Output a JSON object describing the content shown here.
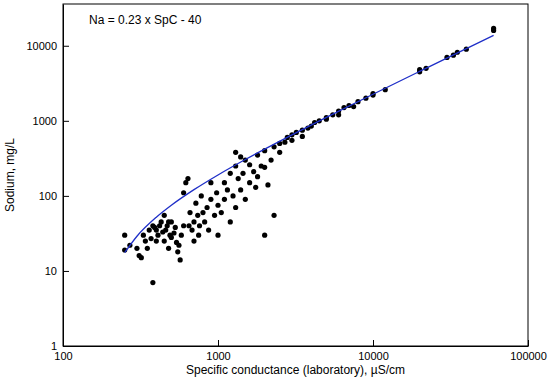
{
  "chart_data": {
    "type": "scatter",
    "log": true,
    "xlabel": "Specific conductance (laboratory), µS/cm",
    "ylabel": "Sodium, mg/L",
    "annotations": [
      "Na = 0.23 x SpC - 40"
    ],
    "xlim": [
      100,
      100000
    ],
    "ylim": [
      1,
      36000
    ],
    "xticks": [
      100,
      1000,
      10000,
      100000
    ],
    "yticks": [
      1,
      10,
      100,
      1000,
      10000
    ],
    "series": [
      {
        "type": "scatter",
        "marker": "circle",
        "color": "#000000",
        "x": [
          250,
          250,
          270,
          300,
          310,
          320,
          330,
          340,
          350,
          360,
          370,
          380,
          380,
          390,
          400,
          400,
          410,
          420,
          430,
          440,
          450,
          450,
          460,
          470,
          480,
          480,
          490,
          500,
          500,
          520,
          530,
          540,
          550,
          560,
          570,
          580,
          600,
          600,
          620,
          640,
          650,
          660,
          680,
          700,
          700,
          720,
          740,
          750,
          760,
          780,
          800,
          820,
          850,
          870,
          900,
          900,
          950,
          980,
          1000,
          1000,
          1050,
          1100,
          1100,
          1150,
          1200,
          1200,
          1250,
          1300,
          1300,
          1350,
          1400,
          1450,
          1500,
          1500,
          1600,
          1600,
          1700,
          1750,
          1800,
          1800,
          1900,
          2000,
          2000,
          2000,
          2100,
          2200,
          2300,
          2300,
          2500,
          2500,
          2700,
          2800,
          3000,
          3000,
          3200,
          3500,
          3500,
          3800,
          4000,
          4200,
          4500,
          5000,
          5000,
          5500,
          6000,
          6000,
          6500,
          7000,
          7500,
          8000,
          9000,
          10000,
          10000,
          12000,
          20000,
          20000,
          22000,
          30000,
          33000,
          35000,
          40000,
          60000,
          60000,
          1300,
          1400
        ],
        "values": [
          30,
          19,
          22,
          20,
          16,
          15,
          30,
          25,
          20,
          35,
          27,
          7,
          40,
          38,
          25,
          35,
          30,
          40,
          45,
          33,
          25,
          55,
          35,
          40,
          20,
          45,
          30,
          45,
          28,
          32,
          38,
          24,
          18,
          22,
          14,
          30,
          40,
          110,
          150,
          170,
          40,
          60,
          35,
          45,
          25,
          80,
          55,
          30,
          40,
          100,
          60,
          45,
          70,
          35,
          90,
          150,
          55,
          110,
          30,
          75,
          60,
          90,
          150,
          120,
          200,
          45,
          100,
          250,
          70,
          170,
          120,
          200,
          300,
          90,
          150,
          260,
          210,
          130,
          350,
          180,
          250,
          30,
          400,
          240,
          140,
          300,
          450,
          55,
          500,
          380,
          520,
          600,
          650,
          550,
          700,
          750,
          620,
          800,
          850,
          950,
          1000,
          1100,
          1050,
          1200,
          1350,
          1200,
          1500,
          1600,
          1550,
          1800,
          2000,
          2300,
          2200,
          2600,
          4500,
          4800,
          5000,
          7000,
          7500,
          8200,
          9000,
          16000,
          17000,
          380,
          330
        ]
      },
      {
        "type": "line",
        "line_style": "solid",
        "color": "#1f2fc8",
        "x": [
          250,
          300,
          400,
          500,
          700,
          1000,
          1500,
          2000,
          3000,
          5000,
          10000,
          20000,
          40000,
          60000
        ],
        "values": [
          17.5,
          29,
          52,
          75,
          121,
          190,
          305,
          420,
          650,
          1110,
          2260,
          4560,
          9160,
          13760
        ]
      }
    ]
  }
}
